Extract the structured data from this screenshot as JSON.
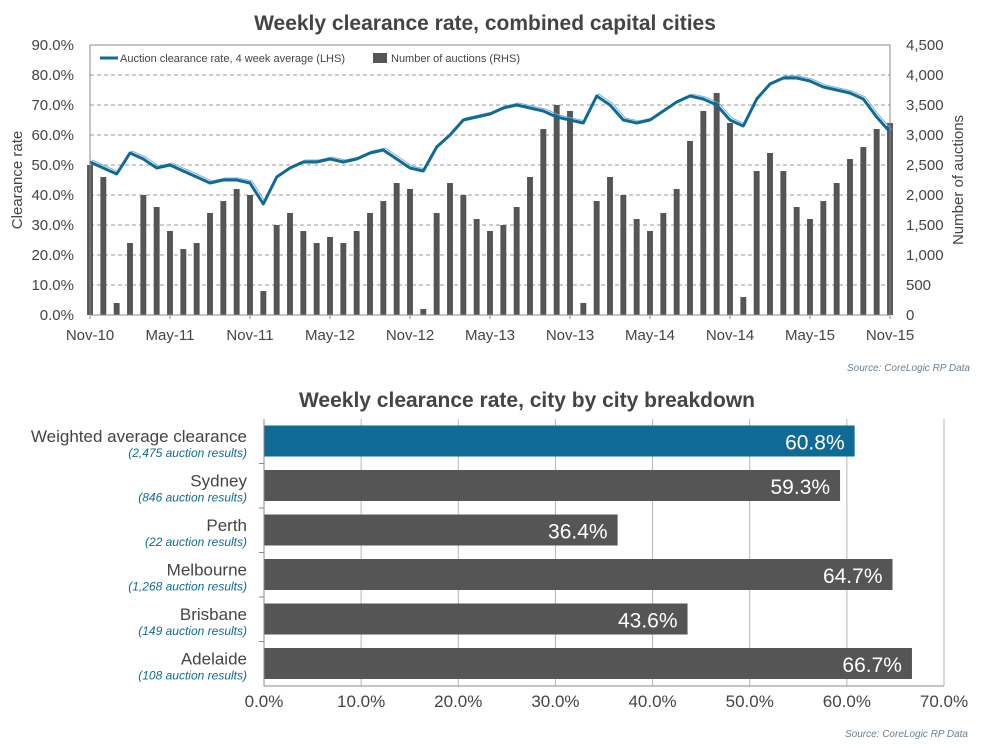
{
  "colors": {
    "accent": "#0f6a95",
    "bar": "#555555",
    "grid": "#9a9a9a",
    "text": "#444444",
    "source": "#6a8090"
  },
  "chart_data": [
    {
      "type": "line",
      "title": "Weekly clearance rate, combined capital cities",
      "ylabel": "Clearance rate",
      "y2label": "Number of auctions",
      "ylim": [
        0,
        90
      ],
      "y2lim": [
        0,
        4500
      ],
      "ytick_labels": [
        "0.0%",
        "10.0%",
        "20.0%",
        "30.0%",
        "40.0%",
        "50.0%",
        "60.0%",
        "70.0%",
        "80.0%",
        "90.0%"
      ],
      "y2tick_labels": [
        "0",
        "500",
        "1,000",
        "1,500",
        "2,000",
        "2,500",
        "3,000",
        "3,500",
        "4,000",
        "4,500"
      ],
      "x_tick_labels": [
        "Nov-10",
        "May-11",
        "Nov-11",
        "May-12",
        "Nov-12",
        "May-13",
        "Nov-13",
        "May-14",
        "Nov-14",
        "May-15",
        "Nov-15"
      ],
      "grid": "horizontal dashed",
      "legend": "top-left",
      "source": "Source: CoreLogic  RP Data",
      "series": [
        {
          "name": "Auction clearance rate, 4 week average (LHS)",
          "kind": "line",
          "axis": "left",
          "x": [
            "Nov-10",
            "Dec-10",
            "Jan-11",
            "Feb-11",
            "Mar-11",
            "Apr-11",
            "May-11",
            "Jun-11",
            "Jul-11",
            "Aug-11",
            "Sep-11",
            "Oct-11",
            "Nov-11",
            "Dec-11",
            "Jan-12",
            "Feb-12",
            "Mar-12",
            "Apr-12",
            "May-12",
            "Jun-12",
            "Jul-12",
            "Aug-12",
            "Sep-12",
            "Oct-12",
            "Nov-12",
            "Dec-12",
            "Jan-13",
            "Feb-13",
            "Mar-13",
            "Apr-13",
            "May-13",
            "Jun-13",
            "Jul-13",
            "Aug-13",
            "Sep-13",
            "Oct-13",
            "Nov-13",
            "Dec-13",
            "Jan-14",
            "Feb-14",
            "Mar-14",
            "Apr-14",
            "May-14",
            "Jun-14",
            "Jul-14",
            "Aug-14",
            "Sep-14",
            "Oct-14",
            "Nov-14",
            "Dec-14",
            "Jan-15",
            "Feb-15",
            "Mar-15",
            "Apr-15",
            "May-15",
            "Jun-15",
            "Jul-15",
            "Aug-15",
            "Sep-15",
            "Oct-15",
            "Nov-15"
          ],
          "values": [
            51,
            49,
            47,
            54,
            52,
            49,
            50,
            48,
            46,
            44,
            45,
            45,
            44,
            37,
            46,
            49,
            51,
            51,
            52,
            51,
            52,
            54,
            55,
            52,
            49,
            48,
            56,
            60,
            65,
            66,
            67,
            69,
            70,
            69,
            68,
            66,
            65,
            64,
            73,
            70,
            65,
            64,
            65,
            68,
            71,
            73,
            72,
            70,
            65,
            63,
            72,
            77,
            79,
            79,
            78,
            76,
            75,
            74,
            72,
            66,
            61
          ]
        },
        {
          "name": "Number of auctions (RHS)",
          "kind": "bar",
          "axis": "right",
          "x": [
            "Nov-10",
            "Dec-10",
            "Jan-11",
            "Feb-11",
            "Mar-11",
            "Apr-11",
            "May-11",
            "Jun-11",
            "Jul-11",
            "Aug-11",
            "Sep-11",
            "Oct-11",
            "Nov-11",
            "Dec-11",
            "Jan-12",
            "Feb-12",
            "Mar-12",
            "Apr-12",
            "May-12",
            "Jun-12",
            "Jul-12",
            "Aug-12",
            "Sep-12",
            "Oct-12",
            "Nov-12",
            "Dec-12",
            "Jan-13",
            "Feb-13",
            "Mar-13",
            "Apr-13",
            "May-13",
            "Jun-13",
            "Jul-13",
            "Aug-13",
            "Sep-13",
            "Oct-13",
            "Nov-13",
            "Dec-13",
            "Jan-14",
            "Feb-14",
            "Mar-14",
            "Apr-14",
            "May-14",
            "Jun-14",
            "Jul-14",
            "Aug-14",
            "Sep-14",
            "Oct-14",
            "Nov-14",
            "Dec-14",
            "Jan-15",
            "Feb-15",
            "Mar-15",
            "Apr-15",
            "May-15",
            "Jun-15",
            "Jul-15",
            "Aug-15",
            "Sep-15",
            "Oct-15",
            "Nov-15"
          ],
          "values": [
            2500,
            2300,
            200,
            1200,
            2000,
            1800,
            1400,
            1100,
            1200,
            1700,
            1900,
            2100,
            2000,
            400,
            1500,
            1700,
            1400,
            1200,
            1300,
            1200,
            1400,
            1700,
            1900,
            2200,
            2100,
            100,
            1700,
            2200,
            2000,
            1600,
            1400,
            1500,
            1800,
            2300,
            3100,
            3500,
            3400,
            200,
            1900,
            2300,
            2000,
            1600,
            1400,
            1700,
            2100,
            2900,
            3400,
            3700,
            3200,
            300,
            2400,
            2700,
            2400,
            1800,
            1600,
            1900,
            2200,
            2600,
            2800,
            3100,
            3200
          ]
        }
      ]
    },
    {
      "type": "bar",
      "orientation": "horizontal",
      "title": "Weekly clearance rate, city by city breakdown",
      "xlim": [
        0,
        70
      ],
      "xtick_labels": [
        "0.0%",
        "10.0%",
        "20.0%",
        "30.0%",
        "40.0%",
        "50.0%",
        "60.0%",
        "70.0%"
      ],
      "source": "Source: CoreLogic  RP Data",
      "categories": [
        {
          "name": "Weighted average clearance",
          "sub": "(2,475 auction results)",
          "value": 60.8,
          "label": "60.8%",
          "highlight": true
        },
        {
          "name": "Sydney",
          "sub": "(846 auction results)",
          "value": 59.3,
          "label": "59.3%",
          "highlight": false
        },
        {
          "name": "Perth",
          "sub": "(22 auction results)",
          "value": 36.4,
          "label": "36.4%",
          "highlight": false
        },
        {
          "name": "Melbourne",
          "sub": "(1,268 auction results)",
          "value": 64.7,
          "label": "64.7%",
          "highlight": false
        },
        {
          "name": "Brisbane",
          "sub": "(149 auction results)",
          "value": 43.6,
          "label": "43.6%",
          "highlight": false
        },
        {
          "name": "Adelaide",
          "sub": "(108 auction results)",
          "value": 66.7,
          "label": "66.7%",
          "highlight": false
        }
      ]
    }
  ]
}
